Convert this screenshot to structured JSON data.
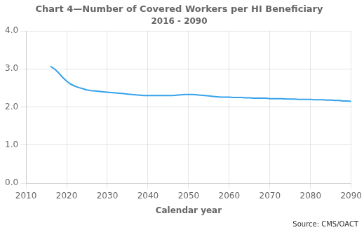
{
  "chart_data": {
    "type": "line",
    "title": "Chart 4—Number of Covered Workers per HI Beneficiary",
    "subtitle": "2016 - 2090",
    "xlabel": "Calendar year",
    "annotations": [
      "Source: CMS/OACT"
    ],
    "x": [
      2016,
      2017,
      2018,
      2019,
      2020,
      2021,
      2022,
      2023,
      2024,
      2025,
      2026,
      2027,
      2028,
      2029,
      2030,
      2031,
      2032,
      2033,
      2034,
      2035,
      2036,
      2037,
      2038,
      2039,
      2040,
      2041,
      2042,
      2043,
      2044,
      2045,
      2046,
      2047,
      2048,
      2049,
      2050,
      2051,
      2052,
      2053,
      2054,
      2055,
      2056,
      2057,
      2058,
      2059,
      2060,
      2061,
      2062,
      2063,
      2064,
      2065,
      2066,
      2067,
      2068,
      2069,
      2070,
      2071,
      2072,
      2073,
      2074,
      2075,
      2076,
      2077,
      2078,
      2079,
      2080,
      2081,
      2082,
      2083,
      2084,
      2085,
      2086,
      2087,
      2088,
      2089,
      2090
    ],
    "values": [
      3.07,
      3.0,
      2.9,
      2.78,
      2.68,
      2.6,
      2.55,
      2.51,
      2.48,
      2.45,
      2.43,
      2.42,
      2.41,
      2.4,
      2.39,
      2.38,
      2.37,
      2.36,
      2.35,
      2.34,
      2.33,
      2.32,
      2.31,
      2.3,
      2.3,
      2.3,
      2.3,
      2.3,
      2.3,
      2.3,
      2.3,
      2.31,
      2.32,
      2.33,
      2.33,
      2.33,
      2.32,
      2.31,
      2.3,
      2.29,
      2.28,
      2.27,
      2.26,
      2.26,
      2.26,
      2.25,
      2.25,
      2.25,
      2.24,
      2.24,
      2.23,
      2.23,
      2.23,
      2.23,
      2.22,
      2.22,
      2.22,
      2.22,
      2.21,
      2.21,
      2.21,
      2.2,
      2.2,
      2.2,
      2.2,
      2.19,
      2.19,
      2.19,
      2.18,
      2.18,
      2.17,
      2.17,
      2.16,
      2.16,
      2.15
    ],
    "xlim": [
      2010,
      2090
    ],
    "ylim": [
      0.0,
      4.0
    ],
    "xticks": [
      2010,
      2020,
      2030,
      2040,
      2050,
      2060,
      2070,
      2080,
      2090
    ],
    "yticks": [
      {
        "value": 0,
        "label": "0.0"
      },
      {
        "value": 1,
        "label": "1.0"
      },
      {
        "value": 2,
        "label": "2.0"
      },
      {
        "value": 3,
        "label": "3.0"
      },
      {
        "value": 4,
        "label": "4.0"
      }
    ],
    "grid": true
  }
}
